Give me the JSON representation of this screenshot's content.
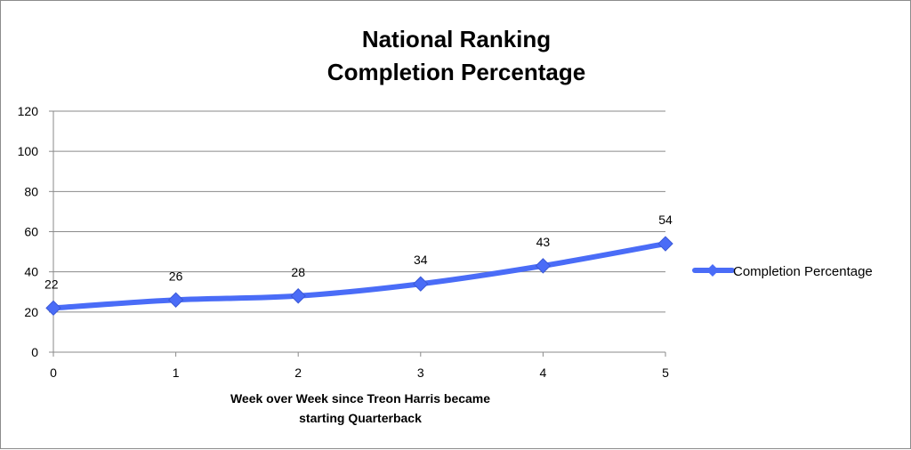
{
  "chart_data": {
    "type": "line",
    "title_lines": [
      "National Ranking",
      "Completion Percentage"
    ],
    "xlabel_lines": [
      "Week over Week since Treon Harris became",
      "starting Quarterback"
    ],
    "ylabel": "",
    "x": [
      0,
      1,
      2,
      3,
      4,
      5
    ],
    "xlim": [
      0,
      5
    ],
    "ylim": [
      0,
      120
    ],
    "y_ticks": [
      0,
      20,
      40,
      60,
      80,
      100,
      120
    ],
    "grid": "horizontal",
    "legend_position": "right",
    "series": [
      {
        "name": "Completion Percentage",
        "color": "#4a6cf7",
        "marker": "diamond",
        "smooth": true,
        "values": [
          22,
          26,
          28,
          34,
          43,
          54
        ],
        "data_labels": [
          "22",
          "26",
          "28",
          "34",
          "43",
          "54"
        ]
      }
    ]
  }
}
